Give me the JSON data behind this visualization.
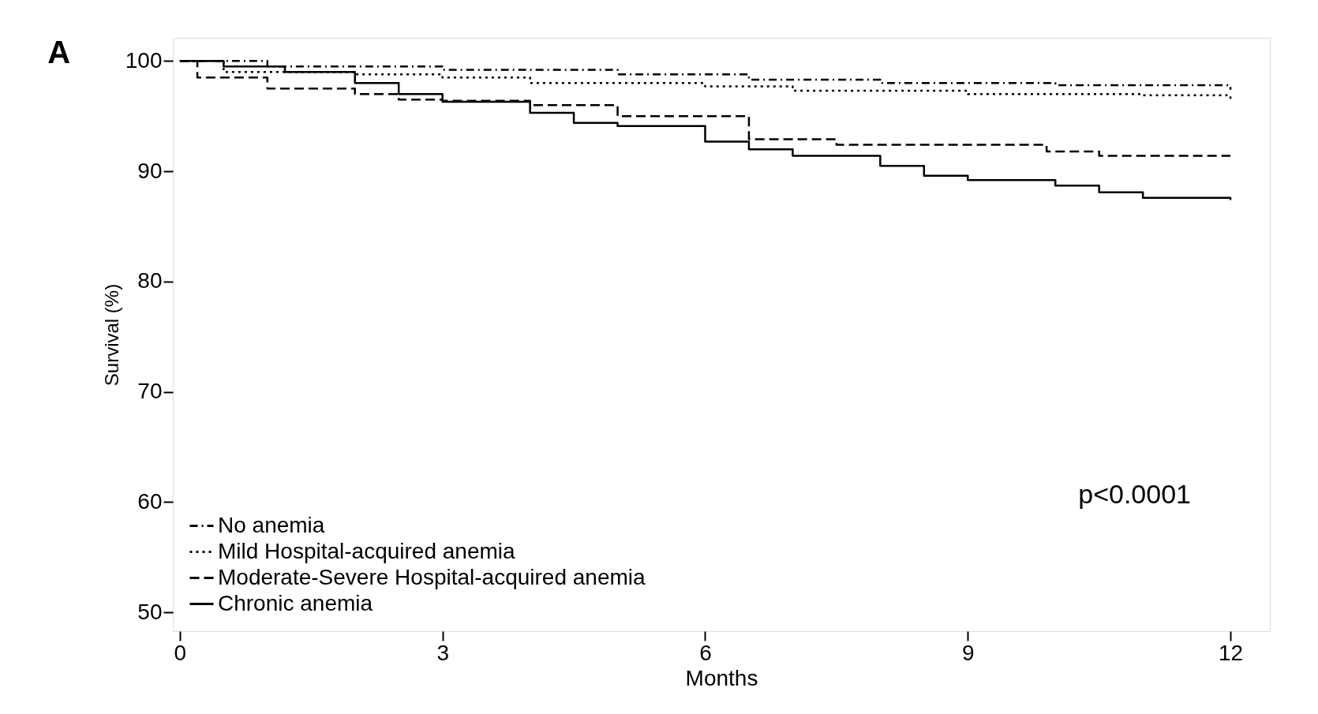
{
  "chart_data": {
    "type": "step",
    "title": "A",
    "xlabel": "Months",
    "ylabel": "Survival (%)",
    "xlim": [
      -0.08,
      12.45
    ],
    "xticks": [
      0,
      3,
      6,
      9,
      12
    ],
    "ylim": [
      48.3,
      102.1
    ],
    "yticks": [
      50,
      60,
      70,
      80,
      90,
      100
    ],
    "grid": false,
    "legend": "bottom left",
    "marker": "none",
    "annotations": [
      "p<0.0001"
    ],
    "series": [
      {
        "name": "No anemia",
        "color": "#000000",
        "line_style": "dashdot",
        "x": [
          0,
          1,
          3,
          5,
          6.5,
          8,
          10,
          12
        ],
        "values": [
          100,
          99.5,
          99.2,
          98.8,
          98.3,
          98,
          97.8,
          97.4
        ]
      },
      {
        "name": "Mild Hospital-acquired anemia",
        "color": "#000000",
        "line_style": "dotted",
        "x": [
          0,
          0.5,
          2,
          3,
          4,
          6,
          7,
          9,
          11,
          12
        ],
        "values": [
          100,
          99,
          98.8,
          98.5,
          98,
          97.7,
          97.3,
          97,
          96.9,
          96.4
        ]
      },
      {
        "name": "Moderate-Severe Hospital-acquired anemia",
        "color": "#000000",
        "line_style": "dashed",
        "x": [
          0,
          0.2,
          1,
          2,
          2.5,
          3,
          4,
          5,
          6.5,
          7.5,
          9.9,
          10.5,
          12
        ],
        "values": [
          100,
          98.5,
          97.5,
          97,
          96.5,
          96.4,
          96,
          95,
          92.9,
          92.4,
          91.8,
          91.4,
          91.4
        ]
      },
      {
        "name": "Chronic anemia",
        "color": "#000000",
        "line_style": "solid",
        "x": [
          0,
          0.5,
          1.2,
          2,
          2.5,
          3,
          4,
          4.5,
          5,
          6,
          6.5,
          7,
          8,
          8.5,
          9,
          10,
          10.5,
          11,
          12
        ],
        "values": [
          100,
          99.5,
          99,
          98,
          97,
          96.3,
          95.3,
          94.4,
          94.1,
          92.7,
          92,
          91.4,
          90.5,
          89.6,
          89.2,
          88.7,
          88.1,
          87.6,
          87.4
        ]
      }
    ]
  }
}
